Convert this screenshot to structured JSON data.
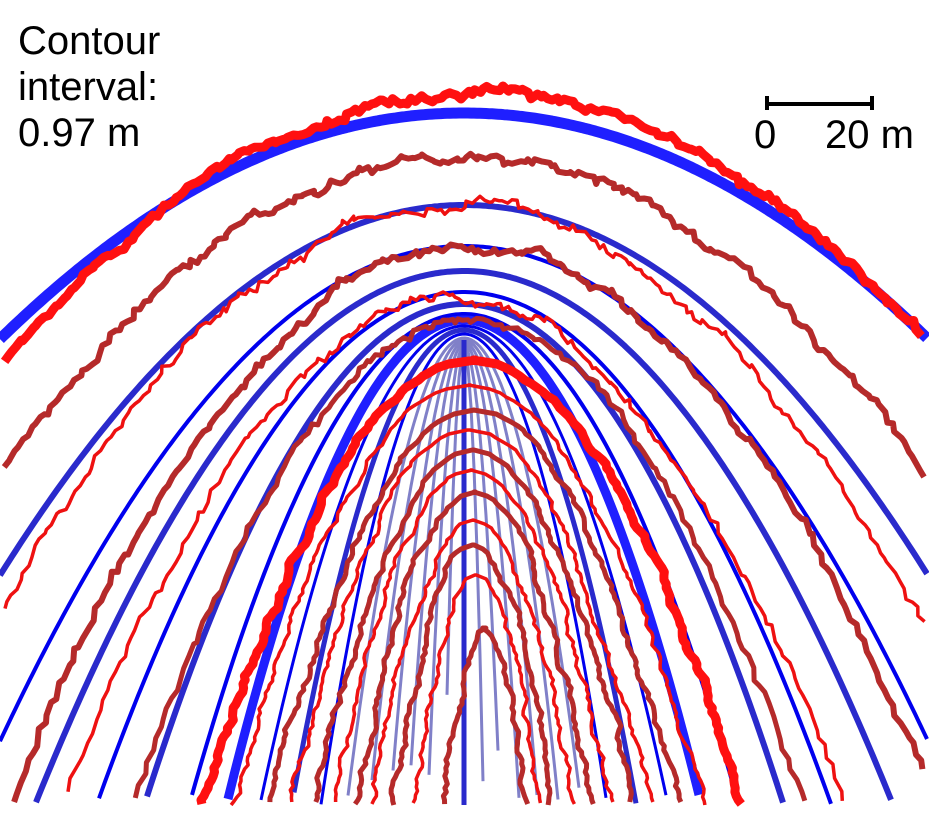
{
  "annotation": {
    "line1": "Contour",
    "line2": "interval:",
    "line3": "0.97 m"
  },
  "scale_bar": {
    "start_label": "0",
    "end_label": "20 m"
  },
  "colors": {
    "model_thick": "#1f1fff",
    "model_mid": "#2a2acc",
    "model_thin": "#0000ee",
    "model_faint": "#8080c8",
    "observed_main": "#ff1010",
    "observed_dark": "#b52a2a",
    "observed_thin": "#ee1111"
  }
}
